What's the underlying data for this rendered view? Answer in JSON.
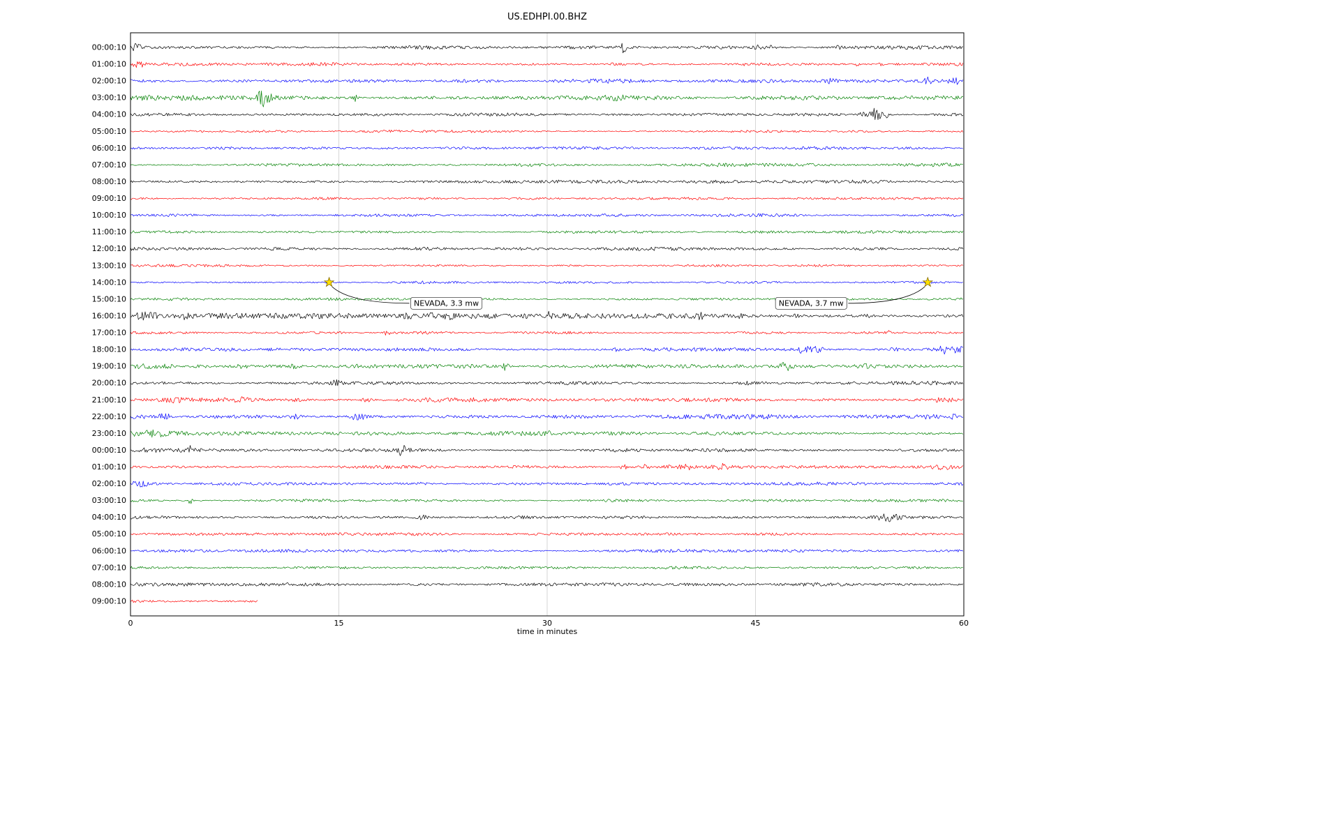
{
  "chart_data": {
    "type": "line",
    "subtype": "seismogram-helicorder",
    "title": "US.EDHPI.00.BHZ",
    "xlabel": "time in minutes",
    "x_range": [
      0,
      60
    ],
    "x_ticks": [
      0,
      15,
      30,
      45,
      60
    ],
    "grid": true,
    "trace_colors_cycle": [
      "#000000",
      "#ff0000",
      "#0000ff",
      "#008000"
    ],
    "star_color": "#ffe100",
    "rows": [
      {
        "label": "00:00:10",
        "color": "#000000",
        "base": 1.0,
        "end": 60,
        "bursts": [
          [
            0.3,
            0.4,
            2.5
          ],
          [
            0.5,
            0.8,
            2
          ],
          [
            35.5,
            0.15,
            8
          ],
          [
            45.3,
            0.5,
            3.5
          ],
          [
            46.2,
            0.3,
            2.5
          ],
          [
            51.0,
            0.15,
            5
          ]
        ]
      },
      {
        "label": "01:00:10",
        "color": "#ff0000",
        "base": 0.9,
        "end": 60,
        "bursts": [
          [
            0.4,
            0.2,
            7
          ],
          [
            0.9,
            0.3,
            3
          ],
          [
            35,
            0.3,
            1.5
          ],
          [
            44,
            0.3,
            1.5
          ],
          [
            52.3,
            0.2,
            2
          ],
          [
            54,
            0.2,
            1.5
          ]
        ]
      },
      {
        "label": "02:00:10",
        "color": "#0000ff",
        "base": 1.1,
        "end": 60,
        "bursts": [
          [
            46,
            2,
            1.2
          ],
          [
            50.5,
            0.6,
            3
          ],
          [
            57.5,
            0.5,
            4.5
          ],
          [
            59.5,
            0.5,
            3
          ]
        ]
      },
      {
        "label": "03:00:10",
        "color": "#008000",
        "base": 1.1,
        "end": 60,
        "bursts": [
          [
            1,
            1.5,
            1.5
          ],
          [
            4,
            1,
            1.2
          ],
          [
            9.5,
            0.3,
            12
          ],
          [
            10,
            0.3,
            6
          ],
          [
            16.2,
            0.15,
            6
          ],
          [
            35,
            0.8,
            2
          ]
        ]
      },
      {
        "label": "04:00:10",
        "color": "#000000",
        "base": 0.9,
        "end": 60,
        "bursts": [
          [
            52.8,
            0.3,
            4
          ],
          [
            53.6,
            0.4,
            9
          ],
          [
            54.3,
            0.3,
            5
          ]
        ]
      },
      {
        "label": "05:00:10",
        "color": "#ff0000",
        "base": 0.7,
        "end": 60,
        "bursts": []
      },
      {
        "label": "06:00:10",
        "color": "#0000ff",
        "base": 0.9,
        "end": 60,
        "bursts": [
          [
            45,
            3,
            0.8
          ]
        ]
      },
      {
        "label": "07:00:10",
        "color": "#008000",
        "base": 0.9,
        "end": 60,
        "bursts": []
      },
      {
        "label": "08:00:10",
        "color": "#000000",
        "base": 0.9,
        "end": 60,
        "bursts": []
      },
      {
        "label": "09:00:10",
        "color": "#ff0000",
        "base": 0.7,
        "end": 60,
        "bursts": []
      },
      {
        "label": "10:00:10",
        "color": "#0000ff",
        "base": 0.9,
        "end": 60,
        "bursts": [
          [
            15,
            0.3,
            1.5
          ]
        ]
      },
      {
        "label": "11:00:10",
        "color": "#008000",
        "base": 0.8,
        "end": 60,
        "bursts": []
      },
      {
        "label": "12:00:10",
        "color": "#000000",
        "base": 1.0,
        "end": 60,
        "bursts": []
      },
      {
        "label": "13:00:10",
        "color": "#ff0000",
        "base": 0.7,
        "end": 60,
        "bursts": []
      },
      {
        "label": "14:00:10",
        "color": "#0000ff",
        "base": 0.8,
        "end": 60,
        "bursts": [
          [
            14.3,
            0.2,
            1.5
          ],
          [
            57.4,
            0.2,
            1.5
          ]
        ]
      },
      {
        "label": "15:00:10",
        "color": "#008000",
        "base": 0.8,
        "end": 60,
        "bursts": []
      },
      {
        "label": "16:00:10",
        "color": "#000000",
        "base": 1.4,
        "end": 60,
        "bursts": [
          [
            0.8,
            0.5,
            4
          ],
          [
            1.5,
            0.4,
            5
          ],
          [
            4,
            0.3,
            3
          ],
          [
            20,
            0.3,
            2.5
          ],
          [
            21.5,
            0.3,
            2.5
          ],
          [
            23,
            0.4,
            2.5
          ],
          [
            26,
            0.3,
            2
          ],
          [
            28.5,
            0.3,
            2.5
          ],
          [
            30.2,
            0.15,
            5
          ],
          [
            37,
            0.3,
            2.2
          ],
          [
            41,
            0.3,
            2.2
          ],
          [
            44,
            0.3,
            2.2
          ],
          [
            48,
            0.3,
            1.8
          ],
          [
            53,
            0.3,
            1.8
          ]
        ]
      },
      {
        "label": "17:00:10",
        "color": "#ff0000",
        "base": 0.8,
        "end": 60,
        "bursts": [
          [
            18.5,
            0.15,
            6
          ],
          [
            54.6,
            0.2,
            3
          ]
        ]
      },
      {
        "label": "18:00:10",
        "color": "#0000ff",
        "base": 1.1,
        "end": 60,
        "bursts": [
          [
            35,
            0.2,
            2.5
          ],
          [
            48.5,
            0.8,
            4.5
          ],
          [
            49.5,
            0.4,
            3.5
          ],
          [
            55,
            0.3,
            2
          ],
          [
            58.5,
            0.3,
            6
          ],
          [
            59.5,
            0.4,
            3
          ]
        ]
      },
      {
        "label": "19:00:10",
        "color": "#008000",
        "base": 1.1,
        "end": 60,
        "bursts": [
          [
            1,
            1,
            2.2
          ],
          [
            2.5,
            0.8,
            2.2
          ],
          [
            5,
            0.6,
            1.6
          ],
          [
            8,
            0.5,
            1.6
          ],
          [
            11.8,
            0.3,
            2.2
          ],
          [
            16.5,
            0.2,
            3.5
          ],
          [
            27,
            0.2,
            5
          ],
          [
            35,
            0.3,
            2.2
          ],
          [
            47.2,
            0.4,
            5
          ],
          [
            53,
            0.3,
            1.6
          ]
        ]
      },
      {
        "label": "20:00:10",
        "color": "#000000",
        "base": 1.0,
        "end": 60,
        "bursts": [
          [
            14.7,
            0.3,
            4.5
          ],
          [
            15.2,
            0.2,
            3
          ],
          [
            44.5,
            0.6,
            2.5
          ],
          [
            58,
            0.3,
            1.5
          ]
        ]
      },
      {
        "label": "21:00:10",
        "color": "#ff0000",
        "base": 1.1,
        "end": 60,
        "bursts": [
          [
            3,
            0.6,
            2.5
          ],
          [
            8,
            0.5,
            2
          ],
          [
            12,
            0.4,
            1.5
          ],
          [
            17,
            0.4,
            2
          ],
          [
            58.5,
            1,
            2.5
          ]
        ]
      },
      {
        "label": "22:00:10",
        "color": "#0000ff",
        "base": 1.3,
        "end": 60,
        "bursts": [
          [
            2.5,
            0.8,
            2.8
          ],
          [
            12,
            0.5,
            2.2
          ],
          [
            16.3,
            0.4,
            5
          ],
          [
            16.9,
            0.3,
            3.5
          ],
          [
            57.5,
            1,
            1.5
          ],
          [
            59.3,
            0.2,
            4.5
          ]
        ]
      },
      {
        "label": "23:00:10",
        "color": "#008000",
        "base": 1.2,
        "end": 60,
        "bursts": [
          [
            0.8,
            0.8,
            3.5
          ],
          [
            2,
            0.5,
            2.2
          ],
          [
            30,
            0.3,
            1.5
          ]
        ]
      },
      {
        "label": "00:00:10",
        "color": "#000000",
        "base": 1.0,
        "end": 60,
        "bursts": [
          [
            1,
            1,
            2.2
          ],
          [
            4.3,
            0.15,
            4.5
          ],
          [
            19.5,
            0.25,
            9
          ],
          [
            20,
            0.2,
            3
          ]
        ]
      },
      {
        "label": "01:00:10",
        "color": "#ff0000",
        "base": 0.9,
        "end": 60,
        "bursts": [
          [
            35.5,
            0.4,
            3
          ],
          [
            37,
            0.4,
            3.5
          ],
          [
            38.5,
            0.4,
            2.5
          ],
          [
            40,
            0.5,
            3
          ],
          [
            42.5,
            0.5,
            3.5
          ],
          [
            58.5,
            1,
            2
          ]
        ]
      },
      {
        "label": "02:00:10",
        "color": "#0000ff",
        "base": 1.0,
        "end": 60,
        "bursts": [
          [
            0.7,
            0.6,
            2.5
          ],
          [
            21,
            0.3,
            1.5
          ]
        ]
      },
      {
        "label": "03:00:10",
        "color": "#008000",
        "base": 0.8,
        "end": 60,
        "bursts": [
          [
            4.3,
            0.15,
            4.5
          ]
        ]
      },
      {
        "label": "04:00:10",
        "color": "#000000",
        "base": 0.9,
        "end": 60,
        "bursts": [
          [
            21,
            0.4,
            2.5
          ],
          [
            53.8,
            0.3,
            5.5
          ],
          [
            54.5,
            0.3,
            6.5
          ],
          [
            55.2,
            0.3,
            3
          ]
        ]
      },
      {
        "label": "05:00:10",
        "color": "#ff0000",
        "base": 0.8,
        "end": 60,
        "bursts": []
      },
      {
        "label": "06:00:10",
        "color": "#0000ff",
        "base": 0.9,
        "end": 60,
        "bursts": []
      },
      {
        "label": "07:00:10",
        "color": "#008000",
        "base": 0.8,
        "end": 60,
        "bursts": []
      },
      {
        "label": "08:00:10",
        "color": "#000000",
        "base": 1.0,
        "end": 60,
        "bursts": []
      },
      {
        "label": "09:00:10",
        "color": "#ff0000",
        "base": 0.9,
        "end": 9.2,
        "bursts": []
      }
    ],
    "events": [
      {
        "label": "NEVADA, 3.3 mw",
        "row": 14,
        "minute": 14.3
      },
      {
        "label": "NEVADA, 3.7 mw",
        "row": 14,
        "minute": 57.4
      }
    ]
  }
}
